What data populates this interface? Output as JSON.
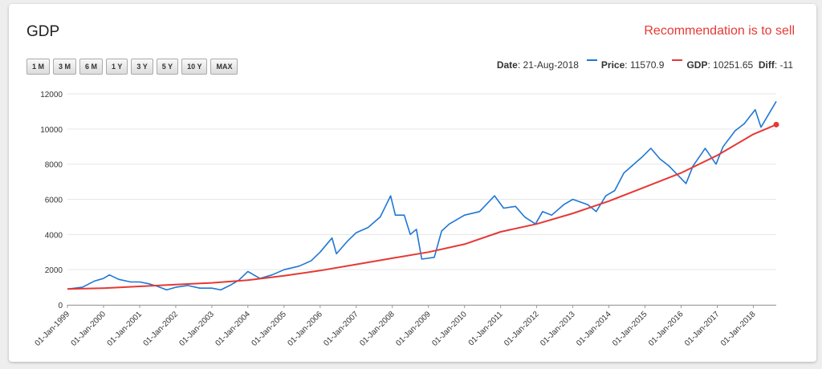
{
  "header": {
    "title": "GDP",
    "recommendation": "Recommendation is to sell"
  },
  "range_buttons": [
    "1 M",
    "3 M",
    "6 M",
    "1 Y",
    "3 Y",
    "5 Y",
    "10 Y",
    "MAX"
  ],
  "info": {
    "date_label": "Date",
    "date_value": "21-Aug-2018",
    "price_label": "Price",
    "price_value": "11570.9",
    "gdp_label": "GDP",
    "gdp_value": "10251.65",
    "diff_label": "Diff",
    "diff_value": "-11"
  },
  "colors": {
    "price": "#1f77d4",
    "gdp": "#e53935",
    "grid": "#e6e6e6",
    "recommendation": "#e53935"
  },
  "chart_data": {
    "type": "line",
    "title": "GDP",
    "xlabel": "",
    "ylabel": "",
    "ylim": [
      0,
      12000
    ],
    "yticks": [
      0,
      2000,
      4000,
      6000,
      8000,
      10000,
      12000
    ],
    "xlim": [
      "1999-01-01",
      "2018-08-21"
    ],
    "xticks": [
      "01-Jan-1999",
      "01-Jan-2000",
      "01-Jan-2001",
      "01-Jan-2002",
      "01-Jan-2003",
      "01-Jan-2004",
      "01-Jan-2005",
      "01-Jan-2006",
      "01-Jan-2007",
      "01-Jan-2008",
      "01-Jan-2009",
      "01-Jan-2010",
      "01-Jan-2011",
      "01-Jan-2012",
      "01-Jan-2013",
      "01-Jan-2014",
      "01-Jan-2015",
      "01-Jan-2016",
      "01-Jan-2017",
      "01-Jan-2018"
    ],
    "grid": true,
    "series": [
      {
        "name": "Price",
        "color": "#1f77d4",
        "points": [
          [
            "1999-01-01",
            900
          ],
          [
            "1999-06-01",
            1000
          ],
          [
            "1999-10-01",
            1350
          ],
          [
            "2000-01-01",
            1500
          ],
          [
            "2000-03-01",
            1700
          ],
          [
            "2000-06-01",
            1450
          ],
          [
            "2000-10-01",
            1300
          ],
          [
            "2001-01-01",
            1300
          ],
          [
            "2001-04-01",
            1200
          ],
          [
            "2001-07-01",
            1050
          ],
          [
            "2001-10-01",
            850
          ],
          [
            "2002-01-01",
            1000
          ],
          [
            "2002-05-01",
            1100
          ],
          [
            "2002-09-01",
            950
          ],
          [
            "2003-01-01",
            950
          ],
          [
            "2003-04-01",
            850
          ],
          [
            "2003-07-01",
            1100
          ],
          [
            "2003-10-01",
            1400
          ],
          [
            "2004-01-01",
            1900
          ],
          [
            "2004-05-01",
            1500
          ],
          [
            "2004-09-01",
            1700
          ],
          [
            "2005-01-01",
            2000
          ],
          [
            "2005-06-01",
            2200
          ],
          [
            "2005-10-01",
            2500
          ],
          [
            "2006-01-01",
            3000
          ],
          [
            "2006-05-01",
            3800
          ],
          [
            "2006-06-15",
            2900
          ],
          [
            "2006-10-01",
            3600
          ],
          [
            "2007-01-01",
            4100
          ],
          [
            "2007-05-01",
            4400
          ],
          [
            "2007-09-01",
            5000
          ],
          [
            "2007-12-15",
            6200
          ],
          [
            "2008-02-01",
            5100
          ],
          [
            "2008-05-01",
            5100
          ],
          [
            "2008-07-01",
            4000
          ],
          [
            "2008-09-01",
            4300
          ],
          [
            "2008-10-25",
            2600
          ],
          [
            "2009-03-01",
            2700
          ],
          [
            "2009-05-15",
            4200
          ],
          [
            "2009-08-01",
            4600
          ],
          [
            "2010-01-01",
            5100
          ],
          [
            "2010-06-01",
            5300
          ],
          [
            "2010-11-01",
            6200
          ],
          [
            "2011-02-01",
            5500
          ],
          [
            "2011-06-01",
            5600
          ],
          [
            "2011-09-01",
            5000
          ],
          [
            "2011-12-20",
            4600
          ],
          [
            "2012-03-01",
            5300
          ],
          [
            "2012-06-01",
            5100
          ],
          [
            "2012-10-01",
            5700
          ],
          [
            "2013-01-01",
            6000
          ],
          [
            "2013-06-01",
            5700
          ],
          [
            "2013-08-25",
            5300
          ],
          [
            "2013-12-01",
            6200
          ],
          [
            "2014-03-01",
            6500
          ],
          [
            "2014-06-01",
            7500
          ],
          [
            "2014-12-01",
            8400
          ],
          [
            "2015-03-01",
            8900
          ],
          [
            "2015-06-01",
            8300
          ],
          [
            "2015-09-01",
            7900
          ],
          [
            "2016-02-20",
            6900
          ],
          [
            "2016-05-01",
            7900
          ],
          [
            "2016-09-01",
            8900
          ],
          [
            "2016-12-20",
            8000
          ],
          [
            "2017-03-01",
            9000
          ],
          [
            "2017-07-01",
            9900
          ],
          [
            "2017-10-01",
            10300
          ],
          [
            "2018-01-20",
            11100
          ],
          [
            "2018-03-20",
            10100
          ],
          [
            "2018-06-01",
            10800
          ],
          [
            "2018-08-21",
            11570.9
          ]
        ]
      },
      {
        "name": "GDP",
        "color": "#e53935",
        "points": [
          [
            "1999-01-01",
            900
          ],
          [
            "2000-01-01",
            950
          ],
          [
            "2001-01-01",
            1050
          ],
          [
            "2002-01-01",
            1150
          ],
          [
            "2003-01-01",
            1250
          ],
          [
            "2004-01-01",
            1400
          ],
          [
            "2005-01-01",
            1650
          ],
          [
            "2006-01-01",
            1950
          ],
          [
            "2007-01-01",
            2300
          ],
          [
            "2008-01-01",
            2650
          ],
          [
            "2009-01-01",
            3000
          ],
          [
            "2010-01-01",
            3450
          ],
          [
            "2011-01-01",
            4150
          ],
          [
            "2012-01-01",
            4600
          ],
          [
            "2013-01-01",
            5200
          ],
          [
            "2014-01-01",
            5900
          ],
          [
            "2015-01-01",
            6700
          ],
          [
            "2016-01-01",
            7500
          ],
          [
            "2017-01-01",
            8500
          ],
          [
            "2018-01-01",
            9700
          ],
          [
            "2018-08-21",
            10251.65
          ]
        ]
      }
    ]
  }
}
